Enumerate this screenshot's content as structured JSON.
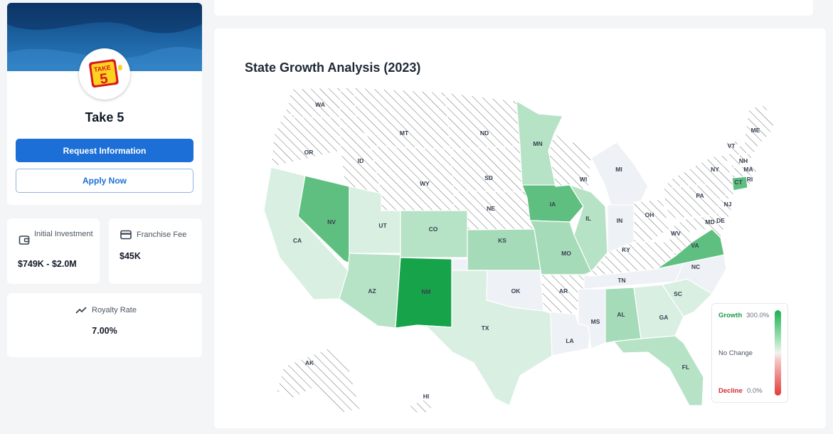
{
  "profile": {
    "brand_name": "Take 5",
    "logo_text_top": "TAKE",
    "logo_text_num": "5",
    "request_label": "Request Information",
    "apply_label": "Apply Now"
  },
  "stats": {
    "investment": {
      "label": "Initial Investment",
      "value": "$749K - $2.0M",
      "icon": "wallet-icon"
    },
    "fee": {
      "label": "Franchise Fee",
      "value": "$45K",
      "icon": "credit-card-icon"
    },
    "royalty": {
      "label": "Royalty Rate",
      "value": "7.00%",
      "icon": "trend-icon"
    }
  },
  "map": {
    "title": "State Growth Analysis (2023)",
    "legend": {
      "growth_label": "Growth",
      "growth_value": "300.0%",
      "no_change_label": "No Change",
      "decline_label": "Decline",
      "decline_value": "0.0%"
    },
    "colors": {
      "none": "hatched",
      "neutral": "#eef1f6",
      "low": "#d9efe2",
      "mid": "#b6e2c6",
      "midhigh": "#a6dbb9",
      "high": "#5fbf80",
      "top": "#17a34a"
    },
    "states": [
      {
        "code": "WA",
        "level": "none"
      },
      {
        "code": "OR",
        "level": "none"
      },
      {
        "code": "ID",
        "level": "none"
      },
      {
        "code": "MT",
        "level": "none"
      },
      {
        "code": "WY",
        "level": "none"
      },
      {
        "code": "ND",
        "level": "none"
      },
      {
        "code": "SD",
        "level": "none"
      },
      {
        "code": "NE",
        "level": "none"
      },
      {
        "code": "CA",
        "level": "low"
      },
      {
        "code": "NV",
        "level": "high"
      },
      {
        "code": "UT",
        "level": "low"
      },
      {
        "code": "AZ",
        "level": "mid"
      },
      {
        "code": "CO",
        "level": "mid"
      },
      {
        "code": "NM",
        "level": "top"
      },
      {
        "code": "KS",
        "level": "midhigh"
      },
      {
        "code": "TX",
        "level": "low"
      },
      {
        "code": "OK",
        "level": "neutral"
      },
      {
        "code": "MN",
        "level": "mid"
      },
      {
        "code": "IA",
        "level": "high"
      },
      {
        "code": "MO",
        "level": "midhigh"
      },
      {
        "code": "AR",
        "level": "none"
      },
      {
        "code": "LA",
        "level": "neutral"
      },
      {
        "code": "WI",
        "level": "none"
      },
      {
        "code": "IL",
        "level": "mid"
      },
      {
        "code": "MI",
        "level": "neutral"
      },
      {
        "code": "IN",
        "level": "neutral"
      },
      {
        "code": "OH",
        "level": "none"
      },
      {
        "code": "KY",
        "level": "none"
      },
      {
        "code": "TN",
        "level": "neutral"
      },
      {
        "code": "MS",
        "level": "neutral"
      },
      {
        "code": "AL",
        "level": "midhigh"
      },
      {
        "code": "GA",
        "level": "low"
      },
      {
        "code": "FL",
        "level": "mid"
      },
      {
        "code": "SC",
        "level": "low"
      },
      {
        "code": "NC",
        "level": "neutral"
      },
      {
        "code": "VA",
        "level": "high"
      },
      {
        "code": "WV",
        "level": "none"
      },
      {
        "code": "PA",
        "level": "none"
      },
      {
        "code": "NY",
        "level": "none"
      },
      {
        "code": "NJ",
        "level": "none"
      },
      {
        "code": "MD",
        "level": "none"
      },
      {
        "code": "DE",
        "level": "none"
      },
      {
        "code": "CT",
        "level": "high"
      },
      {
        "code": "RI",
        "level": "none"
      },
      {
        "code": "MA",
        "level": "none"
      },
      {
        "code": "NH",
        "level": "none"
      },
      {
        "code": "VT",
        "level": "none"
      },
      {
        "code": "ME",
        "level": "none"
      },
      {
        "code": "AK",
        "level": "none"
      },
      {
        "code": "HI",
        "level": "none"
      }
    ]
  }
}
